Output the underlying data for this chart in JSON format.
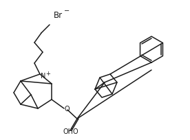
{
  "bg_color": "#ffffff",
  "line_color": "#1a1a1a",
  "lw": 1.1,
  "figsize": [
    2.76,
    2.04
  ],
  "dpi": 100,
  "br_text": "Br",
  "br_sup": "−",
  "n_plus_text": "N",
  "n_sup": "+",
  "o_text": "O",
  "oho_text": "OHO"
}
